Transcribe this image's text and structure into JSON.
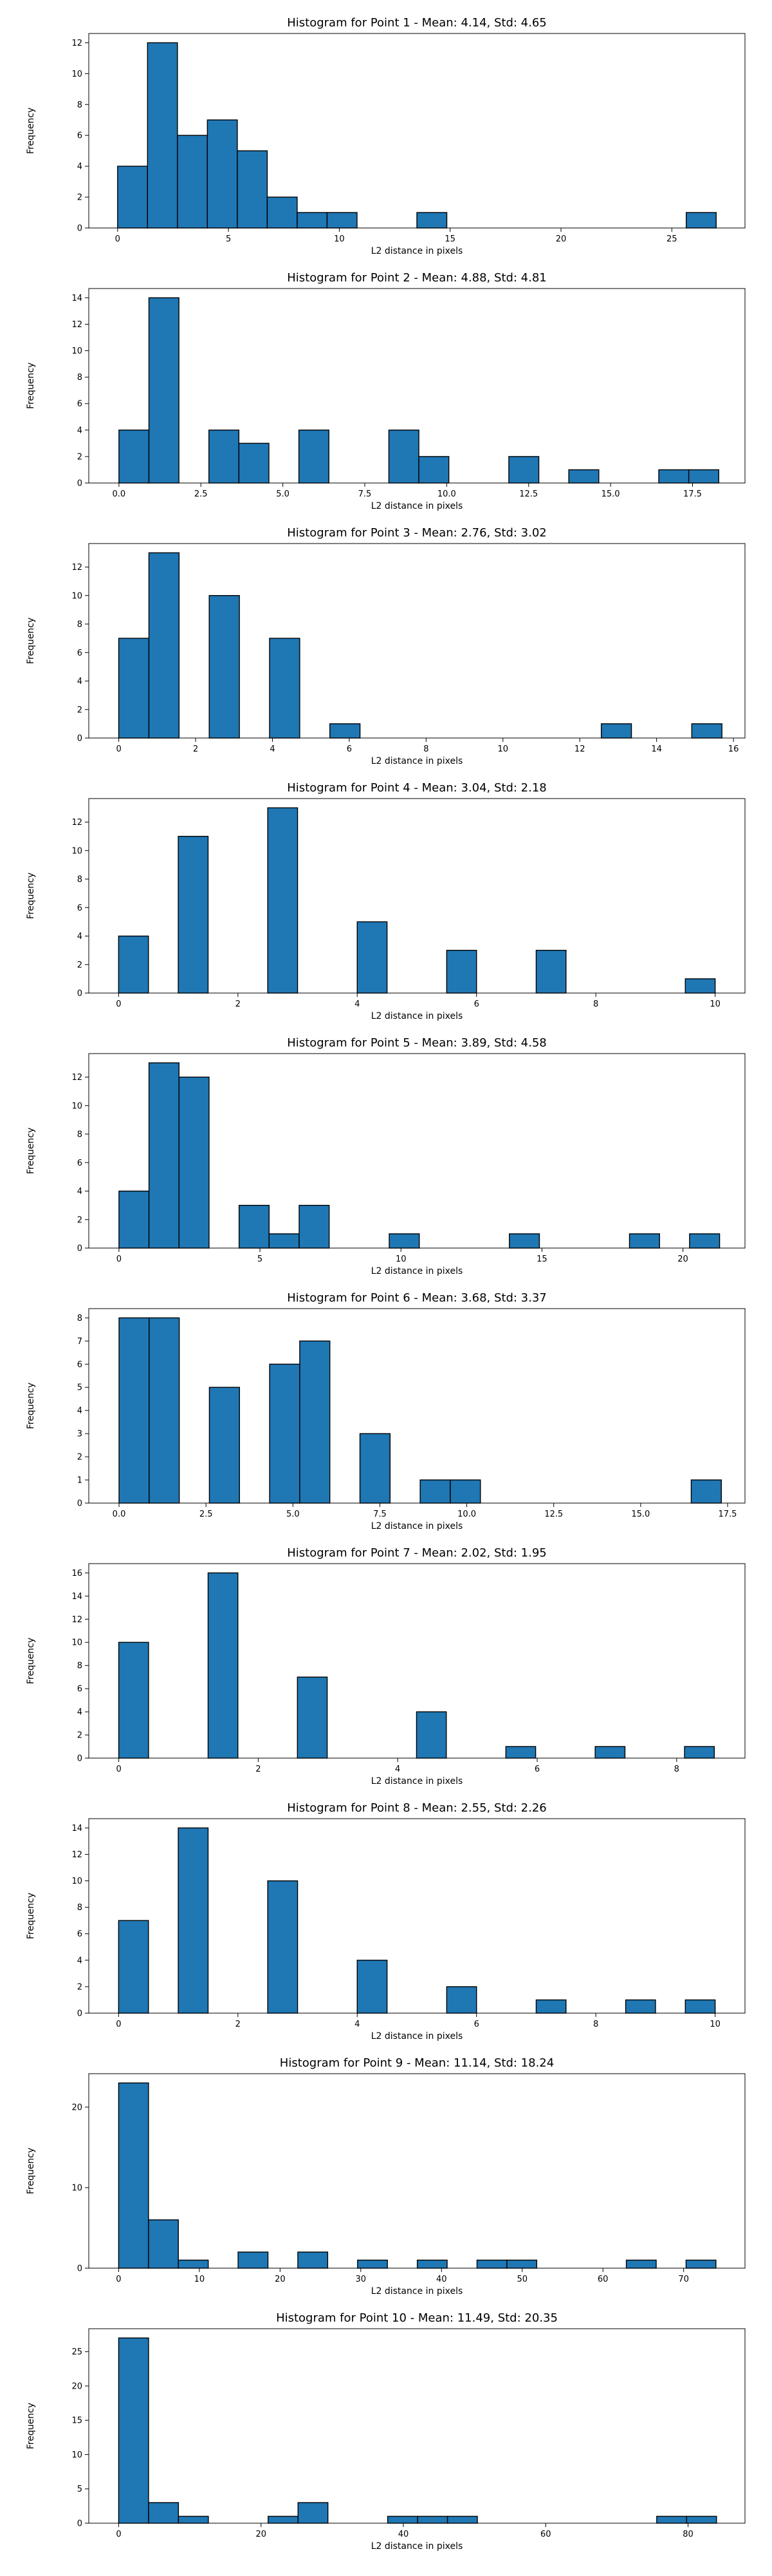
{
  "chart_data": [
    {
      "type": "bar",
      "title": "Histogram for Point 1 - Mean: 4.14, Std: 4.65",
      "xlabel": "L2 distance in pixels",
      "ylabel": "Frequency",
      "xlim": [
        -1.3,
        28.3
      ],
      "ylim": [
        0,
        12.6
      ],
      "xticks": [
        0,
        5,
        10,
        15,
        20,
        25
      ],
      "xtick_labels": [
        "0",
        "5",
        "10",
        "15",
        "20",
        "25"
      ],
      "yticks": [
        0,
        2,
        4,
        6,
        8,
        10,
        12
      ],
      "bin_width": 1.35,
      "bins": [
        {
          "start": 0.0,
          "count": 4
        },
        {
          "start": 1.35,
          "count": 12
        },
        {
          "start": 2.7,
          "count": 6
        },
        {
          "start": 4.05,
          "count": 7
        },
        {
          "start": 5.4,
          "count": 5
        },
        {
          "start": 6.75,
          "count": 2
        },
        {
          "start": 8.1,
          "count": 1
        },
        {
          "start": 9.45,
          "count": 1
        },
        {
          "start": 13.5,
          "count": 1
        },
        {
          "start": 25.65,
          "count": 1
        }
      ]
    },
    {
      "type": "bar",
      "title": "Histogram for Point 2 - Mean: 4.88, Std: 4.81",
      "xlabel": "L2 distance in pixels",
      "ylabel": "Frequency",
      "xlim": [
        -0.92,
        19.1
      ],
      "ylim": [
        0,
        14.7
      ],
      "xticks": [
        0,
        2.5,
        5,
        7.5,
        10,
        12.5,
        15,
        17.5
      ],
      "xtick_labels": [
        "0.0",
        "2.5",
        "5.0",
        "7.5",
        "10.0",
        "12.5",
        "15.0",
        "17.5"
      ],
      "yticks": [
        0,
        2,
        4,
        6,
        8,
        10,
        12,
        14
      ],
      "bin_width": 0.915,
      "bins": [
        {
          "start": 0.0,
          "count": 4
        },
        {
          "start": 0.915,
          "count": 14
        },
        {
          "start": 2.745,
          "count": 4
        },
        {
          "start": 3.66,
          "count": 3
        },
        {
          "start": 5.49,
          "count": 4
        },
        {
          "start": 8.235,
          "count": 4
        },
        {
          "start": 9.15,
          "count": 2
        },
        {
          "start": 11.895,
          "count": 2
        },
        {
          "start": 13.725,
          "count": 1
        },
        {
          "start": 16.47,
          "count": 1
        },
        {
          "start": 17.385,
          "count": 1
        }
      ]
    },
    {
      "type": "bar",
      "title": "Histogram for Point 3 - Mean: 2.76, Std: 3.02",
      "xlabel": "L2 distance in pixels",
      "ylabel": "Frequency",
      "xlim": [
        -0.78,
        16.3
      ],
      "ylim": [
        0,
        13.65
      ],
      "xticks": [
        0,
        2,
        4,
        6,
        8,
        10,
        12,
        14,
        16
      ],
      "xtick_labels": [
        "0",
        "2",
        "4",
        "6",
        "8",
        "10",
        "12",
        "14",
        "16"
      ],
      "yticks": [
        0,
        2,
        4,
        6,
        8,
        10,
        12
      ],
      "bin_width": 0.785,
      "bins": [
        {
          "start": 0.0,
          "count": 7
        },
        {
          "start": 0.785,
          "count": 13
        },
        {
          "start": 2.355,
          "count": 10
        },
        {
          "start": 3.925,
          "count": 7
        },
        {
          "start": 5.495,
          "count": 1
        },
        {
          "start": 12.56,
          "count": 1
        },
        {
          "start": 14.915,
          "count": 1
        }
      ]
    },
    {
      "type": "bar",
      "title": "Histogram for Point 4 - Mean: 3.04, Std: 2.18",
      "xlabel": "L2 distance in pixels",
      "ylabel": "Frequency",
      "xlim": [
        -0.5,
        10.5
      ],
      "ylim": [
        0,
        13.65
      ],
      "xticks": [
        0,
        2,
        4,
        6,
        8,
        10
      ],
      "xtick_labels": [
        "0",
        "2",
        "4",
        "6",
        "8",
        "10"
      ],
      "yticks": [
        0,
        2,
        4,
        6,
        8,
        10,
        12
      ],
      "bin_width": 0.5,
      "bins": [
        {
          "start": 0.0,
          "count": 4
        },
        {
          "start": 1.0,
          "count": 11
        },
        {
          "start": 2.5,
          "count": 13
        },
        {
          "start": 4.0,
          "count": 5
        },
        {
          "start": 5.5,
          "count": 3
        },
        {
          "start": 7.0,
          "count": 3
        },
        {
          "start": 9.5,
          "count": 1
        }
      ]
    },
    {
      "type": "bar",
      "title": "Histogram for Point 5 - Mean: 3.89, Std: 4.58",
      "xlabel": "L2 distance in pixels",
      "ylabel": "Frequency",
      "xlim": [
        -1.07,
        22.2
      ],
      "ylim": [
        0,
        13.65
      ],
      "xticks": [
        0,
        5,
        10,
        15,
        20
      ],
      "xtick_labels": [
        "0",
        "5",
        "10",
        "15",
        "20"
      ],
      "yticks": [
        0,
        2,
        4,
        6,
        8,
        10,
        12
      ],
      "bin_width": 1.065,
      "bins": [
        {
          "start": 0.0,
          "count": 4
        },
        {
          "start": 1.065,
          "count": 13
        },
        {
          "start": 2.13,
          "count": 12
        },
        {
          "start": 4.26,
          "count": 3
        },
        {
          "start": 5.325,
          "count": 1
        },
        {
          "start": 6.39,
          "count": 3
        },
        {
          "start": 9.585,
          "count": 1
        },
        {
          "start": 13.845,
          "count": 1
        },
        {
          "start": 18.105,
          "count": 1
        },
        {
          "start": 20.235,
          "count": 1
        }
      ]
    },
    {
      "type": "bar",
      "title": "Histogram for Point 6 - Mean: 3.68, Std: 3.37",
      "xlabel": "L2 distance in pixels",
      "ylabel": "Frequency",
      "xlim": [
        -0.87,
        18.0
      ],
      "ylim": [
        0,
        8.4
      ],
      "xticks": [
        0,
        2.5,
        5,
        7.5,
        10,
        12.5,
        15,
        17.5
      ],
      "xtick_labels": [
        "0.0",
        "2.5",
        "5.0",
        "7.5",
        "10.0",
        "12.5",
        "15.0",
        "17.5"
      ],
      "yticks": [
        0,
        1,
        2,
        3,
        4,
        5,
        6,
        7,
        8
      ],
      "bin_width": 0.866,
      "bins": [
        {
          "start": 0.0,
          "count": 8
        },
        {
          "start": 0.866,
          "count": 8
        },
        {
          "start": 2.598,
          "count": 5
        },
        {
          "start": 4.33,
          "count": 6
        },
        {
          "start": 5.196,
          "count": 7
        },
        {
          "start": 6.928,
          "count": 3
        },
        {
          "start": 8.66,
          "count": 1
        },
        {
          "start": 9.526,
          "count": 1
        },
        {
          "start": 16.454,
          "count": 1
        }
      ]
    },
    {
      "type": "bar",
      "title": "Histogram for Point 7 - Mean: 2.02, Std: 1.95",
      "xlabel": "L2 distance in pixels",
      "ylabel": "Frequency",
      "xlim": [
        -0.43,
        8.98
      ],
      "ylim": [
        0,
        16.8
      ],
      "xticks": [
        0,
        2,
        4,
        6,
        8
      ],
      "xtick_labels": [
        "0",
        "2",
        "4",
        "6",
        "8"
      ],
      "yticks": [
        0,
        2,
        4,
        6,
        8,
        10,
        12,
        14,
        16
      ],
      "bin_width": 0.427,
      "bins": [
        {
          "start": 0.0,
          "count": 10
        },
        {
          "start": 1.281,
          "count": 16
        },
        {
          "start": 2.562,
          "count": 7
        },
        {
          "start": 4.27,
          "count": 4
        },
        {
          "start": 5.551,
          "count": 1
        },
        {
          "start": 6.832,
          "count": 1
        },
        {
          "start": 8.113,
          "count": 1
        }
      ]
    },
    {
      "type": "bar",
      "title": "Histogram for Point 8 - Mean: 2.55, Std: 2.26",
      "xlabel": "L2 distance in pixels",
      "ylabel": "Frequency",
      "xlim": [
        -0.5,
        10.5
      ],
      "ylim": [
        0,
        14.7
      ],
      "xticks": [
        0,
        2,
        4,
        6,
        8,
        10
      ],
      "xtick_labels": [
        "0",
        "2",
        "4",
        "6",
        "8",
        "10"
      ],
      "yticks": [
        0,
        2,
        4,
        6,
        8,
        10,
        12,
        14
      ],
      "bin_width": 0.5,
      "bins": [
        {
          "start": 0.0,
          "count": 7
        },
        {
          "start": 1.0,
          "count": 14
        },
        {
          "start": 2.5,
          "count": 10
        },
        {
          "start": 4.0,
          "count": 4
        },
        {
          "start": 5.5,
          "count": 2
        },
        {
          "start": 7.0,
          "count": 1
        },
        {
          "start": 8.5,
          "count": 1
        },
        {
          "start": 9.5,
          "count": 1
        }
      ]
    },
    {
      "type": "bar",
      "title": "Histogram for Point 9 - Mean: 11.14, Std: 18.24",
      "xlabel": "L2 distance in pixels",
      "ylabel": "Frequency",
      "xlim": [
        -3.7,
        77.6
      ],
      "ylim": [
        0,
        24.15
      ],
      "xticks": [
        0,
        10,
        20,
        30,
        40,
        50,
        60,
        70
      ],
      "xtick_labels": [
        "0",
        "10",
        "20",
        "30",
        "40",
        "50",
        "60",
        "70"
      ],
      "yticks": [
        0,
        10,
        20
      ],
      "bin_width": 3.7,
      "bins": [
        {
          "start": 0.0,
          "count": 23
        },
        {
          "start": 3.7,
          "count": 6
        },
        {
          "start": 7.4,
          "count": 1
        },
        {
          "start": 14.8,
          "count": 2
        },
        {
          "start": 22.2,
          "count": 2
        },
        {
          "start": 29.6,
          "count": 1
        },
        {
          "start": 37.0,
          "count": 1
        },
        {
          "start": 44.4,
          "count": 1
        },
        {
          "start": 48.1,
          "count": 1
        },
        {
          "start": 62.9,
          "count": 1
        },
        {
          "start": 70.3,
          "count": 1
        }
      ]
    },
    {
      "type": "bar",
      "title": "Histogram for Point 10 - Mean: 11.49, Std: 20.35",
      "xlabel": "L2 distance in pixels",
      "ylabel": "Frequency",
      "xlim": [
        -4.2,
        88.0
      ],
      "ylim": [
        0,
        28.35
      ],
      "xticks": [
        0,
        20,
        40,
        60,
        80
      ],
      "xtick_labels": [
        "0",
        "20",
        "40",
        "60",
        "80"
      ],
      "yticks": [
        0,
        5,
        10,
        15,
        20,
        25
      ],
      "bin_width": 4.2,
      "bins": [
        {
          "start": 0.0,
          "count": 27
        },
        {
          "start": 4.2,
          "count": 3
        },
        {
          "start": 8.4,
          "count": 1
        },
        {
          "start": 21.0,
          "count": 1
        },
        {
          "start": 25.2,
          "count": 3
        },
        {
          "start": 37.8,
          "count": 1
        },
        {
          "start": 42.0,
          "count": 1
        },
        {
          "start": 46.2,
          "count": 1
        },
        {
          "start": 75.6,
          "count": 1
        },
        {
          "start": 79.8,
          "count": 1
        }
      ]
    }
  ]
}
